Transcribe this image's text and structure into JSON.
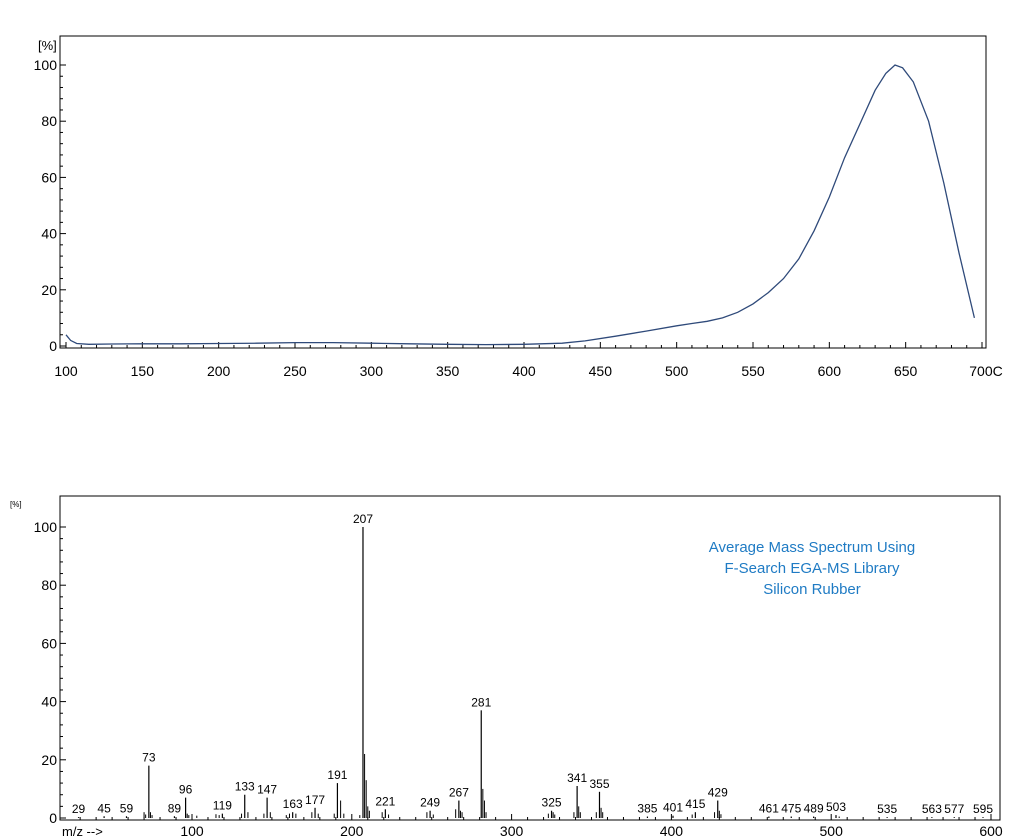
{
  "chart_data": [
    {
      "type": "line",
      "ylabel": "[%]",
      "x_unit_suffix": "C",
      "xlim": [
        100,
        700
      ],
      "ylim": [
        0,
        100
      ],
      "x_ticks": [
        100,
        150,
        200,
        250,
        300,
        350,
        400,
        450,
        500,
        550,
        600,
        650,
        700
      ],
      "x_tick_labels": [
        "100",
        "150",
        "200",
        "250",
        "300",
        "350",
        "400",
        "450",
        "500",
        "550",
        "600",
        "650",
        "700C"
      ],
      "y_ticks": [
        0,
        20,
        40,
        60,
        80,
        100
      ],
      "y_tick_labels": [
        "0",
        "20",
        "40",
        "60",
        "80",
        "100"
      ],
      "grid": false,
      "series": [
        {
          "color": "#2f4a7a",
          "points": [
            [
              100,
              4
            ],
            [
              103,
              2
            ],
            [
              107,
              0.9
            ],
            [
              115,
              0.6
            ],
            [
              130,
              0.7
            ],
            [
              150,
              0.8
            ],
            [
              175,
              0.8
            ],
            [
              200,
              0.9
            ],
            [
              225,
              1.0
            ],
            [
              250,
              1.2
            ],
            [
              275,
              1.2
            ],
            [
              300,
              1.0
            ],
            [
              325,
              0.8
            ],
            [
              350,
              0.6
            ],
            [
              375,
              0.5
            ],
            [
              400,
              0.6
            ],
            [
              425,
              1.0
            ],
            [
              440,
              1.8
            ],
            [
              460,
              3.5
            ],
            [
              480,
              5.3
            ],
            [
              500,
              7.2
            ],
            [
              510,
              8.0
            ],
            [
              520,
              8.8
            ],
            [
              530,
              10.0
            ],
            [
              540,
              12.0
            ],
            [
              550,
              15.0
            ],
            [
              560,
              19.0
            ],
            [
              570,
              24.0
            ],
            [
              580,
              31.0
            ],
            [
              590,
              41.0
            ],
            [
              600,
              53.0
            ],
            [
              610,
              67.0
            ],
            [
              620,
              79.0
            ],
            [
              630,
              91.0
            ],
            [
              637,
              97.0
            ],
            [
              643,
              100.0
            ],
            [
              648,
              99.0
            ],
            [
              655,
              94.0
            ],
            [
              665,
              80.0
            ],
            [
              675,
              58.0
            ],
            [
              685,
              33.0
            ],
            [
              695,
              10.0
            ]
          ]
        }
      ]
    },
    {
      "type": "bar",
      "ylabel": "[%]",
      "xlabel": "m/z -->",
      "xlim": [
        0,
        600
      ],
      "ylim": [
        0,
        100
      ],
      "x_ticks": [
        100,
        200,
        300,
        400,
        500,
        600
      ],
      "x_tick_labels": [
        "100",
        "200",
        "300",
        "400",
        "500",
        "600"
      ],
      "y_ticks": [
        0,
        20,
        40,
        60,
        80,
        100
      ],
      "y_tick_labels": [
        "0",
        "20",
        "40",
        "60",
        "80",
        "100"
      ],
      "grid": false,
      "annotation": {
        "lines": [
          "Average Mass Spectrum Using",
          "F-Search EGA-MS Library",
          "Silicon Rubber"
        ],
        "color": "#1f7bc4",
        "placement": "top-right"
      },
      "peaks": [
        {
          "mz": 29,
          "value": 0.3,
          "label": "29"
        },
        {
          "mz": 45,
          "value": 0.6,
          "label": "45"
        },
        {
          "mz": 59,
          "value": 0.6,
          "label": "59"
        },
        {
          "mz": 73,
          "value": 18,
          "label": "73"
        },
        {
          "mz": 89,
          "value": 0.6,
          "label": "89"
        },
        {
          "mz": 96,
          "value": 7,
          "label": "96"
        },
        {
          "mz": 119,
          "value": 1.5,
          "label": "119"
        },
        {
          "mz": 133,
          "value": 8,
          "label": "133"
        },
        {
          "mz": 147,
          "value": 7,
          "label": "147"
        },
        {
          "mz": 163,
          "value": 2,
          "label": "163"
        },
        {
          "mz": 177,
          "value": 3.5,
          "label": "177"
        },
        {
          "mz": 191,
          "value": 12,
          "label": "191"
        },
        {
          "mz": 207,
          "value": 100,
          "label": "207"
        },
        {
          "mz": 221,
          "value": 3,
          "label": "221"
        },
        {
          "mz": 249,
          "value": 2.5,
          "label": "249"
        },
        {
          "mz": 267,
          "value": 6,
          "label": "267"
        },
        {
          "mz": 281,
          "value": 37,
          "label": "281"
        },
        {
          "mz": 325,
          "value": 2.5,
          "label": "325"
        },
        {
          "mz": 341,
          "value": 11,
          "label": "341"
        },
        {
          "mz": 355,
          "value": 9,
          "label": "355"
        },
        {
          "mz": 385,
          "value": 0.5,
          "label": "385"
        },
        {
          "mz": 401,
          "value": 0.8,
          "label": "401"
        },
        {
          "mz": 415,
          "value": 2,
          "label": "415"
        },
        {
          "mz": 429,
          "value": 6,
          "label": "429"
        },
        {
          "mz": 461,
          "value": 0.5,
          "label": "461"
        },
        {
          "mz": 475,
          "value": 0.5,
          "label": "475"
        },
        {
          "mz": 489,
          "value": 0.5,
          "label": "489"
        },
        {
          "mz": 503,
          "value": 1,
          "label": "503"
        },
        {
          "mz": 535,
          "value": 0.3,
          "label": "535"
        },
        {
          "mz": 563,
          "value": 0.3,
          "label": "563"
        },
        {
          "mz": 577,
          "value": 0.3,
          "label": "577"
        },
        {
          "mz": 595,
          "value": 0.3,
          "label": "595"
        }
      ],
      "minor_peaks": [
        [
          70,
          2
        ],
        [
          71,
          1.2
        ],
        [
          74,
          2
        ],
        [
          75,
          1
        ],
        [
          97,
          1.5
        ],
        [
          98,
          1
        ],
        [
          103,
          0.8
        ],
        [
          115,
          1.3
        ],
        [
          117,
          1
        ],
        [
          131,
          1.5
        ],
        [
          135,
          2
        ],
        [
          145,
          1.5
        ],
        [
          149,
          2
        ],
        [
          159,
          1
        ],
        [
          161,
          1.5
        ],
        [
          165,
          1.5
        ],
        [
          175,
          2
        ],
        [
          179,
          1.5
        ],
        [
          189,
          1.5
        ],
        [
          193,
          6
        ],
        [
          195,
          1.5
        ],
        [
          205,
          1
        ],
        [
          208,
          22
        ],
        [
          209,
          13
        ],
        [
          210,
          4
        ],
        [
          211,
          2.5
        ],
        [
          219,
          2
        ],
        [
          223,
          1.2
        ],
        [
          247,
          2
        ],
        [
          251,
          1.2
        ],
        [
          265,
          3
        ],
        [
          268,
          2.5
        ],
        [
          269,
          2
        ],
        [
          282,
          10
        ],
        [
          283,
          6
        ],
        [
          284,
          2
        ],
        [
          323,
          1.5
        ],
        [
          326,
          2
        ],
        [
          327,
          1.2
        ],
        [
          339,
          2
        ],
        [
          342,
          4
        ],
        [
          343,
          2
        ],
        [
          353,
          2
        ],
        [
          356,
          3.5
        ],
        [
          357,
          2
        ],
        [
          413,
          1.2
        ],
        [
          427,
          2
        ],
        [
          430,
          2.5
        ],
        [
          431,
          1.3
        ],
        [
          505,
          0.5
        ]
      ]
    }
  ]
}
